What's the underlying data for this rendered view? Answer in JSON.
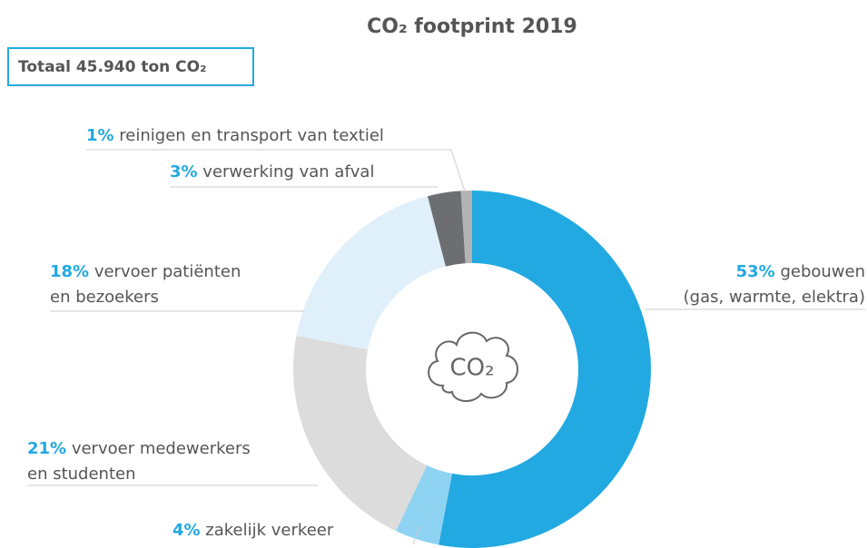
{
  "chart_data": {
    "type": "donut",
    "title": "CO₂ footprint 2019",
    "total_label": "Totaal 45.940 ton CO₂",
    "center_label": "CO₂",
    "categories": [
      [
        "gebouwen",
        "(gas, warmte, elektra)"
      ],
      [
        "zakelijk verkeer"
      ],
      [
        "vervoer medewerkers",
        "en studenten"
      ],
      [
        "vervoer patiënten",
        "en bezoekers"
      ],
      [
        "verwerking van afval"
      ],
      [
        "reinigen en transport van textiel"
      ]
    ],
    "values": [
      53,
      4,
      21,
      18,
      3,
      1
    ],
    "value_labels": [
      "53%",
      "4%",
      "21%",
      "18%",
      "3%",
      "1%"
    ],
    "colors": [
      "#22a9e1",
      "#8fd3f2",
      "#dcdcdc",
      "#dff0fb",
      "#6d6e71",
      "#b3b3b3"
    ]
  }
}
